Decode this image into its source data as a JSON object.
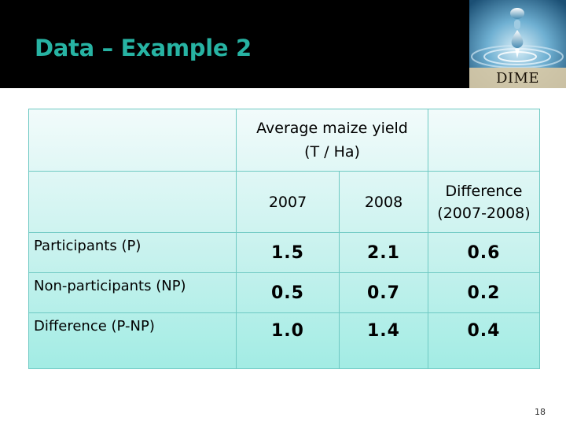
{
  "slide": {
    "title": "Data – Example 2",
    "page_number": "18"
  },
  "logo": {
    "text": "DIME"
  },
  "table": {
    "header": {
      "group_line1": "Average  maize yield",
      "group_line2": "(T / Ha)",
      "col_2007": "2007",
      "col_2008": "2008",
      "col_diff_line1": "Difference",
      "col_diff_line2": "(2007-2008)"
    },
    "rows": [
      {
        "label": "Participants (P)",
        "v2007": "1.5",
        "v2008": "2.1",
        "diff": "0.6"
      },
      {
        "label": "Non-participants (NP)",
        "v2007": "0.5",
        "v2008": "0.7",
        "diff": "0.2"
      },
      {
        "label": "Difference (P-NP)",
        "v2007": "1.0",
        "v2008": "1.4",
        "diff": "0.4"
      }
    ]
  },
  "colors": {
    "title": "#27b3a3",
    "table_border": "#6fc9c3",
    "table_fill": "#a2ece4"
  }
}
